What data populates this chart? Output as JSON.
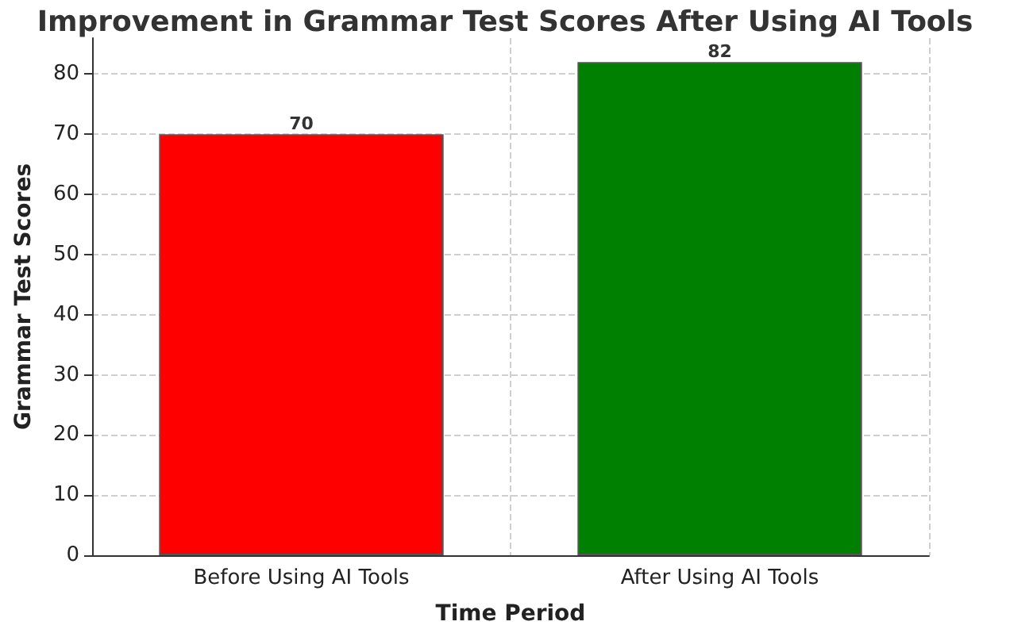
{
  "chart_data": {
    "type": "bar",
    "title": "Improvement in Grammar Test Scores After Using AI Tools",
    "xlabel": "Time Period",
    "ylabel": "Grammar Test Scores",
    "categories": [
      "Before Using AI Tools",
      "After Using AI Tools"
    ],
    "values": [
      70,
      82
    ],
    "colors": [
      "#ff0000",
      "#008000"
    ],
    "ylim": [
      0,
      86
    ],
    "yticks": [
      0,
      10,
      20,
      30,
      40,
      50,
      60,
      70,
      80
    ],
    "grid": true,
    "data_labels": true
  }
}
